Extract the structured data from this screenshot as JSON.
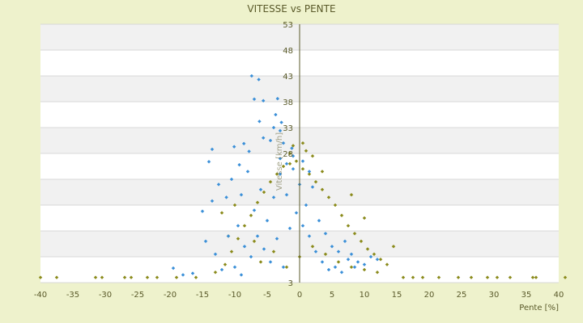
{
  "chart_data": {
    "type": "scatter",
    "title": "VITESSE vs PENTE",
    "xlabel": "Pente [%]",
    "ylabel": "Vitesse [km/h]",
    "xlim": [
      -40,
      40
    ],
    "ylim": [
      3,
      53
    ],
    "x_ticks": [
      -40,
      -35,
      -30,
      -25,
      -20,
      -15,
      -10,
      -5,
      0,
      5,
      10,
      15,
      20,
      25,
      30,
      35,
      40
    ],
    "y_ticks": [
      3,
      8,
      13,
      18,
      23,
      28,
      33,
      38,
      43,
      48,
      53
    ],
    "y_tick_labels": [
      "3",
      "",
      "",
      "",
      "",
      "28",
      "33",
      "38",
      "43",
      "48",
      "53"
    ],
    "grid": "horizontal-bands",
    "legend": "none",
    "colors": {
      "background": "#eef2cc",
      "plot_band_light": "#ffffff",
      "plot_band_dark": "#f1f1f1",
      "series_a": "#3a8fd8",
      "series_b": "#8a8a1a",
      "axis": "#5a5a2a"
    },
    "series": [
      {
        "color": "#3a8fd8",
        "points": [
          [
            -7.4,
            43.0
          ],
          [
            -6.3,
            42.3
          ],
          [
            -7.0,
            38.5
          ],
          [
            -5.6,
            38.2
          ],
          [
            -3.4,
            38.6
          ],
          [
            -3.7,
            35.5
          ],
          [
            -2.8,
            34.0
          ],
          [
            -3.0,
            32.4
          ],
          [
            -4.0,
            33.0
          ],
          [
            -6.2,
            34.2
          ],
          [
            -14.0,
            26.4
          ],
          [
            -13.5,
            28.8
          ],
          [
            -10.1,
            29.3
          ],
          [
            -8.6,
            29.9
          ],
          [
            -9.3,
            25.8
          ],
          [
            -7.8,
            28.4
          ],
          [
            -5.6,
            31.0
          ],
          [
            -4.5,
            30.5
          ],
          [
            -2.5,
            30.0
          ],
          [
            -1.2,
            29.0
          ],
          [
            -13.5,
            18.8
          ],
          [
            -15.0,
            16.8
          ],
          [
            -16.5,
            4.8
          ],
          [
            -19.5,
            5.8
          ],
          [
            -18.0,
            4.5
          ],
          [
            -12.5,
            22.0
          ],
          [
            -11.3,
            19.5
          ],
          [
            -10.5,
            23.0
          ],
          [
            -9.0,
            20.0
          ],
          [
            -8.0,
            24.5
          ],
          [
            -7.0,
            17.0
          ],
          [
            -6.0,
            21.0
          ],
          [
            -5.0,
            15.0
          ],
          [
            -4.0,
            19.5
          ],
          [
            -3.0,
            24.0
          ],
          [
            -2.0,
            20.0
          ],
          [
            -1.0,
            25.0
          ],
          [
            0.0,
            22.0
          ],
          [
            1.0,
            18.0
          ],
          [
            2.0,
            21.5
          ],
          [
            3.0,
            15.0
          ],
          [
            4.0,
            12.5
          ],
          [
            5.0,
            10.0
          ],
          [
            6.0,
            9.0
          ],
          [
            7.0,
            11.0
          ],
          [
            8.0,
            8.5
          ],
          [
            9.0,
            7.0
          ],
          [
            10.0,
            6.5
          ],
          [
            11.0,
            8.0
          ],
          [
            12.0,
            7.5
          ],
          [
            -11.0,
            12.0
          ],
          [
            -9.5,
            14.0
          ],
          [
            -8.5,
            10.0
          ],
          [
            -7.5,
            8.0
          ],
          [
            -6.5,
            12.0
          ],
          [
            -5.5,
            9.5
          ],
          [
            -4.5,
            7.0
          ],
          [
            -3.5,
            11.5
          ],
          [
            -2.5,
            6.0
          ],
          [
            -1.5,
            13.5
          ],
          [
            -0.5,
            16.5
          ],
          [
            0.5,
            14.0
          ],
          [
            1.5,
            12.0
          ],
          [
            2.5,
            9.0
          ],
          [
            3.5,
            7.0
          ],
          [
            4.5,
            5.5
          ],
          [
            5.5,
            6.0
          ],
          [
            6.5,
            5.0
          ],
          [
            7.5,
            7.5
          ],
          [
            8.5,
            6.0
          ],
          [
            -14.5,
            11.0
          ],
          [
            -13.0,
            8.5
          ],
          [
            -12.0,
            5.5
          ],
          [
            -10.0,
            6.0
          ],
          [
            -9.0,
            4.5
          ],
          [
            -3.0,
            27.0
          ],
          [
            -2.0,
            26.0
          ],
          [
            -1.0,
            27.5
          ],
          [
            0.5,
            26.5
          ],
          [
            1.5,
            24.5
          ]
        ]
      },
      {
        "color": "#8a8a1a",
        "points": [
          [
            -40.0,
            4.0
          ],
          [
            -37.5,
            4.0
          ],
          [
            -31.5,
            4.0
          ],
          [
            -30.5,
            4.0
          ],
          [
            -27.0,
            4.0
          ],
          [
            -26.0,
            4.0
          ],
          [
            -23.5,
            4.0
          ],
          [
            -22.0,
            4.0
          ],
          [
            -19.0,
            4.0
          ],
          [
            -16.0,
            4.0
          ],
          [
            16.0,
            4.0
          ],
          [
            17.5,
            4.0
          ],
          [
            19.0,
            4.0
          ],
          [
            21.5,
            4.0
          ],
          [
            24.5,
            4.0
          ],
          [
            26.5,
            4.0
          ],
          [
            29.0,
            4.0
          ],
          [
            30.5,
            4.0
          ],
          [
            32.5,
            4.0
          ],
          [
            36.0,
            4.0
          ],
          [
            36.5,
            4.0
          ],
          [
            41.0,
            4.0
          ],
          [
            -13.0,
            5.0
          ],
          [
            -11.5,
            6.5
          ],
          [
            -10.5,
            9.0
          ],
          [
            -9.5,
            11.5
          ],
          [
            -8.5,
            14.0
          ],
          [
            -7.5,
            16.0
          ],
          [
            -6.5,
            18.5
          ],
          [
            -5.5,
            20.5
          ],
          [
            -4.5,
            22.5
          ],
          [
            -3.5,
            24.0
          ],
          [
            -2.5,
            25.5
          ],
          [
            -1.5,
            26.0
          ],
          [
            -0.5,
            26.5
          ],
          [
            0.5,
            25.0
          ],
          [
            1.5,
            24.0
          ],
          [
            2.5,
            22.5
          ],
          [
            3.5,
            21.0
          ],
          [
            4.5,
            19.5
          ],
          [
            5.5,
            18.0
          ],
          [
            6.5,
            16.0
          ],
          [
            7.5,
            14.0
          ],
          [
            8.5,
            12.5
          ],
          [
            9.5,
            11.0
          ],
          [
            10.5,
            9.5
          ],
          [
            11.5,
            8.5
          ],
          [
            12.5,
            7.5
          ],
          [
            13.5,
            6.5
          ],
          [
            14.5,
            10.0
          ],
          [
            10.0,
            15.5
          ],
          [
            8.0,
            20.0
          ],
          [
            3.5,
            24.5
          ],
          [
            -12.0,
            16.5
          ],
          [
            -10.0,
            18.0
          ],
          [
            -11.0,
            12.0
          ],
          [
            -7.0,
            11.0
          ],
          [
            -6.0,
            7.0
          ],
          [
            -4.0,
            9.0
          ],
          [
            -2.0,
            6.0
          ],
          [
            0.0,
            8.0
          ],
          [
            2.0,
            10.0
          ],
          [
            4.0,
            8.5
          ],
          [
            6.0,
            7.0
          ],
          [
            8.0,
            6.0
          ],
          [
            10.0,
            5.5
          ],
          [
            12.0,
            5.0
          ],
          [
            0.5,
            30.0
          ],
          [
            1.0,
            28.5
          ],
          [
            -1.0,
            29.5
          ],
          [
            -1.5,
            28.0
          ],
          [
            2.0,
            27.5
          ]
        ]
      }
    ]
  }
}
